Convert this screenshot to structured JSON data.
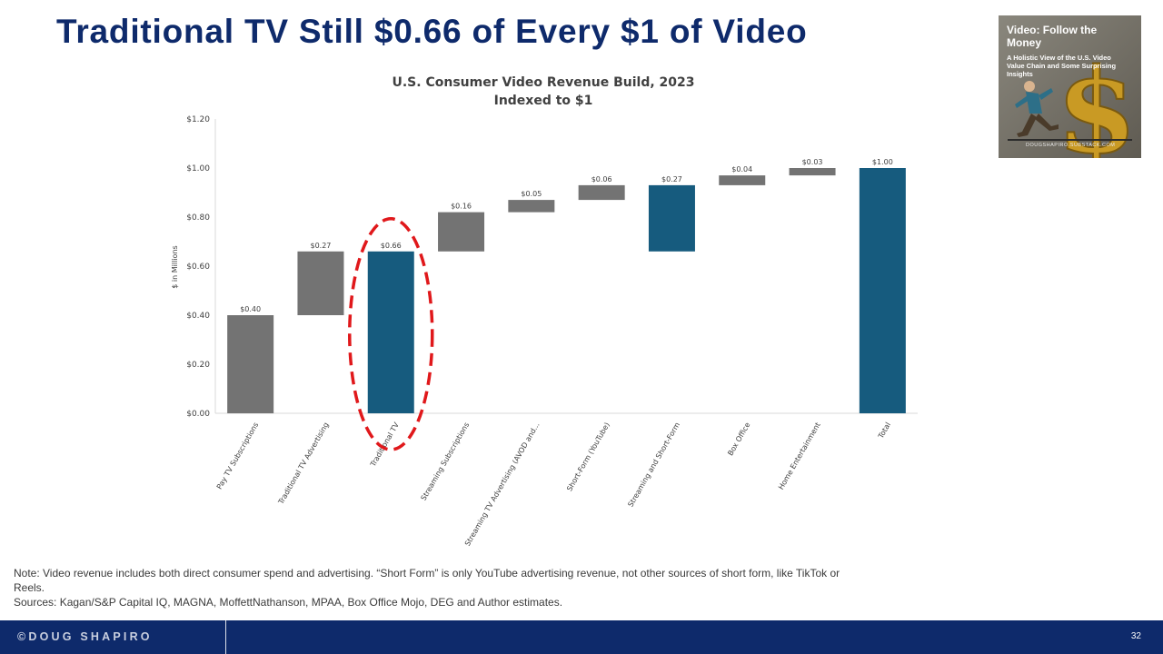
{
  "slide": {
    "title": "Traditional TV Still $0.66 of Every $1 of Video"
  },
  "thumbnail": {
    "title": "Video: Follow the Money",
    "subtitle": "A Holistic View of the U.S. Video Value Chain and Some Surprising Insights",
    "footer": "DOUGSHAPIRO.SUBSTACK.COM"
  },
  "chart_data": {
    "type": "bar",
    "subtype": "waterfall",
    "title": "U.S. Consumer Video Revenue Build, 2023",
    "subtitle": "Indexed to $1",
    "xlabel": "",
    "ylabel": "$ in Millions",
    "ylim": [
      0,
      1.2
    ],
    "yticks": [
      0,
      0.2,
      0.4,
      0.6,
      0.8,
      1.0,
      1.2
    ],
    "ytick_labels": [
      "$0.00",
      "$0.20",
      "$0.40",
      "$0.60",
      "$0.80",
      "$1.00",
      "$1.20"
    ],
    "grid": false,
    "categories": [
      "Pay TV Subscriptions",
      "Traditional TV Advertising",
      "Traditional TV",
      "Streaming Subscriptions",
      "Streaming TV Advertising (AVOD and...",
      "Short-Form (YouTube)",
      "Streaming and Short-Form",
      "Box Office",
      "Home Entertainment",
      "Total"
    ],
    "bars": [
      {
        "start": 0.0,
        "end": 0.4,
        "label": "$0.40",
        "kind": "increment"
      },
      {
        "start": 0.4,
        "end": 0.66,
        "label": "$0.27",
        "kind": "increment"
      },
      {
        "start": 0.0,
        "end": 0.66,
        "label": "$0.66",
        "kind": "subtotal"
      },
      {
        "start": 0.66,
        "end": 0.82,
        "label": "$0.16",
        "kind": "increment"
      },
      {
        "start": 0.82,
        "end": 0.87,
        "label": "$0.05",
        "kind": "increment"
      },
      {
        "start": 0.87,
        "end": 0.93,
        "label": "$0.06",
        "kind": "increment"
      },
      {
        "start": 0.66,
        "end": 0.93,
        "label": "$0.27",
        "kind": "subtotal"
      },
      {
        "start": 0.93,
        "end": 0.97,
        "label": "$0.04",
        "kind": "increment"
      },
      {
        "start": 0.97,
        "end": 1.0,
        "label": "$0.03",
        "kind": "increment"
      },
      {
        "start": 0.0,
        "end": 1.0,
        "label": "$1.00",
        "kind": "total"
      }
    ],
    "highlight_category": "Traditional TV",
    "colors": {
      "increment": "#737373",
      "subtotal": "#165b7e",
      "total": "#165b7e",
      "highlight_ring": "#e0181b",
      "axis": "#d9d9d9",
      "text": "#404040"
    }
  },
  "note": {
    "text": "Note: Video revenue includes both direct consumer spend and advertising. “Short Form” is only YouTube advertising revenue, not other sources of short form, like TikTok or Reels.",
    "sources": "Sources:  Kagan/S&P Capital IQ, MAGNA, MoffettNathanson, MPAA, Box Office Mojo, DEG and Author estimates."
  },
  "footer": {
    "brand": "©DOUG SHAPIRO",
    "page_number": "32"
  }
}
